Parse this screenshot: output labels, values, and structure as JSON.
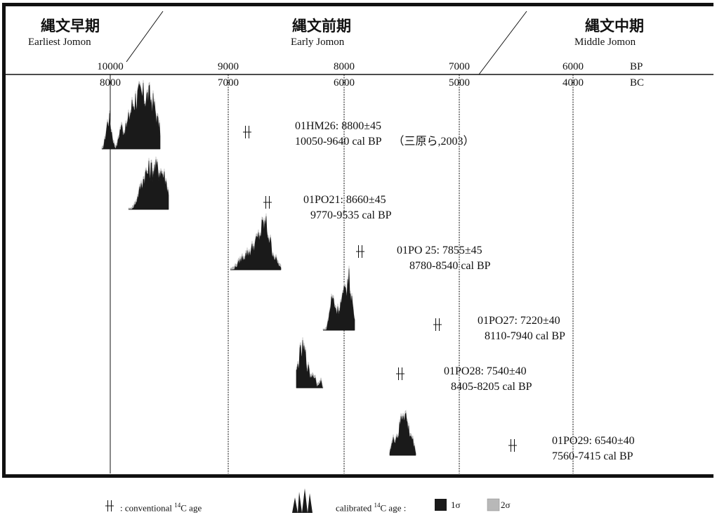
{
  "chart_data": {
    "type": "scatter",
    "title": "",
    "periods": [
      {
        "jp": "縄文早期",
        "en": "Earliest Jomon"
      },
      {
        "jp": "縄文前期",
        "en": "Early Jomon"
      },
      {
        "jp": "縄文中期",
        "en": "Middle Jomon"
      }
    ],
    "bp_axis": {
      "unit": "BP",
      "ticks": [
        10000,
        9000,
        8000,
        7000,
        6000
      ]
    },
    "bc_axis": {
      "unit": "BC",
      "ticks": [
        8000,
        7000,
        6000,
        5000,
        4000
      ]
    },
    "samples": [
      {
        "id": "01HM26",
        "label": "01HM26: 8800±45",
        "c14_bp": 8800,
        "error": 45,
        "cal_label": "10050-9640 cal BP",
        "cal_range_bp": [
          10050,
          9640
        ],
        "ref": "（三原ら,2003）"
      },
      {
        "id": "01PO21",
        "label": "01PO21: 8660±45",
        "c14_bp": 8660,
        "error": 45,
        "cal_label": "9770-9535 cal BP",
        "cal_range_bp": [
          9770,
          9535
        ],
        "ref": ""
      },
      {
        "id": "01PO25",
        "label": "01PO 25: 7855±45",
        "c14_bp": 7855,
        "error": 45,
        "cal_label": "8780-8540 cal BP",
        "cal_range_bp": [
          8780,
          8540
        ],
        "ref": ""
      },
      {
        "id": "01PO27",
        "label": "01PO27: 7220±40",
        "c14_bp": 7220,
        "error": 40,
        "cal_label": "8110-7940 cal BP",
        "cal_range_bp": [
          8110,
          7940
        ],
        "ref": ""
      },
      {
        "id": "01PO28",
        "label": "01PO28: 7540±40",
        "c14_bp": 7540,
        "error": 40,
        "cal_label": "8405-8205 cal BP",
        "cal_range_bp": [
          8405,
          8205
        ],
        "ref": ""
      },
      {
        "id": "01PO29",
        "label": "01PO29: 6540±40",
        "c14_bp": 6540,
        "error": 40,
        "cal_label": "7560-7415 cal BP",
        "cal_range_bp": [
          7560,
          7415
        ],
        "ref": ""
      }
    ],
    "legend": {
      "conventional_pre": ": conventional ",
      "conventional_sup": "14",
      "conventional_post": "C age",
      "calibrated_pre": "calibrated ",
      "calibrated_sup": "14",
      "calibrated_post": "C age :",
      "sigma1": "1σ",
      "sigma2": "2σ"
    },
    "colors": {
      "ink": "#111111",
      "sigma1": "#1a1a1a",
      "sigma2": "#b8b8b8"
    }
  }
}
